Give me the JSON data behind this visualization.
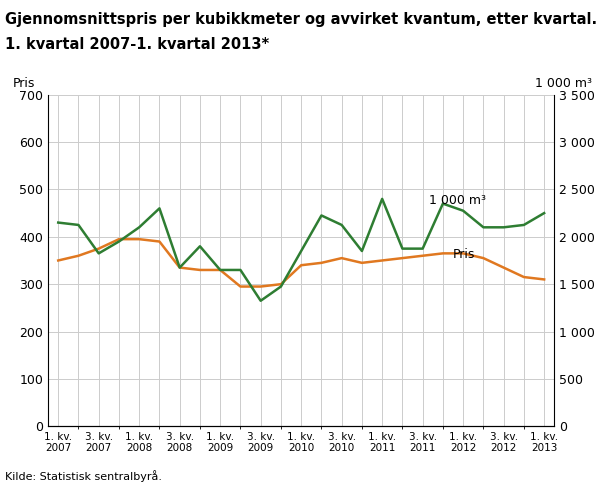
{
  "title_line1": "Gjennomsnittspris per kubikkmeter og avvirket kvantum, etter kvartal.",
  "title_line2": "1. kvartal 2007-1. kvartal 2013*",
  "ylabel_left": "Pris",
  "ylabel_right": "1 000 m³",
  "source": "Kilde: Statistisk sentralbyrå.",
  "pris_color": "#e07820",
  "kvantum_color": "#2e7d32",
  "ylim_left": [
    0,
    700
  ],
  "ylim_right": [
    0,
    3500
  ],
  "yticks_left": [
    0,
    100,
    200,
    300,
    400,
    500,
    600,
    700
  ],
  "yticks_right": [
    0,
    500,
    1000,
    1500,
    2000,
    2500,
    3000,
    3500
  ],
  "pris_data": [
    350,
    360,
    375,
    395,
    395,
    390,
    335,
    330,
    330,
    295,
    295,
    300,
    340,
    345,
    355,
    345,
    350,
    355,
    360,
    365,
    365,
    355,
    335,
    315,
    310
  ],
  "kvantum_data": [
    2150,
    2125,
    1825,
    1950,
    2100,
    2300,
    1675,
    1900,
    1650,
    1650,
    1325,
    1475,
    1850,
    2225,
    2125,
    1850,
    2400,
    1875,
    1875,
    2350,
    2275,
    2100,
    2100,
    2125,
    2250
  ],
  "annotation_kvantum": "1 000 m³",
  "annotation_pris": "Pris",
  "ann_kv_xi": 17,
  "ann_kv_yi": 2400,
  "ann_kv_xt": 18.3,
  "ann_kv_yt": 2350,
  "ann_pr_xi": 19,
  "ann_pr_yi": 360,
  "ann_pr_xt": 19.5,
  "ann_pr_yt": 355
}
